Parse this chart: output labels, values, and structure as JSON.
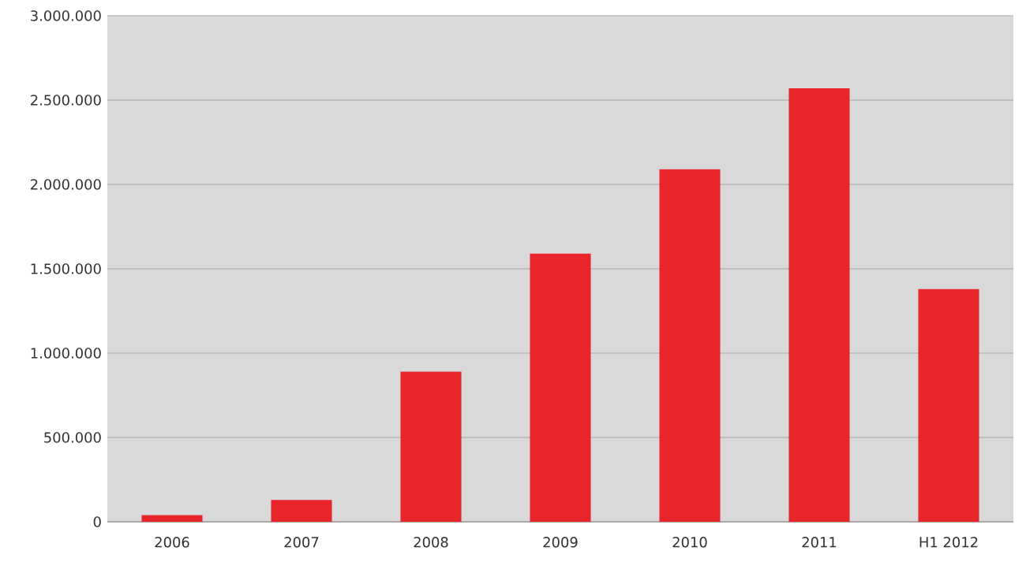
{
  "chart_data": {
    "type": "bar",
    "categories": [
      "2006",
      "2007",
      "2008",
      "2009",
      "2010",
      "2011",
      "H1 2012"
    ],
    "values": [
      40000,
      130000,
      890000,
      1590000,
      2090000,
      2570000,
      1380000
    ],
    "color": "#e8262b",
    "ylim": [
      0,
      3000000
    ],
    "yticks": [
      0,
      {
        "value": 500000,
        "label": "500.000"
      },
      {
        "value": 1000000,
        "label": "1.000.000"
      },
      {
        "value": 1500000,
        "label": "1.500.000"
      },
      {
        "value": 2000000,
        "label": "2.000.000"
      },
      {
        "value": 2500000,
        "label": "2.500.000"
      },
      {
        "value": 3000000,
        "label": "3.000.000"
      }
    ],
    "grid": "y"
  }
}
